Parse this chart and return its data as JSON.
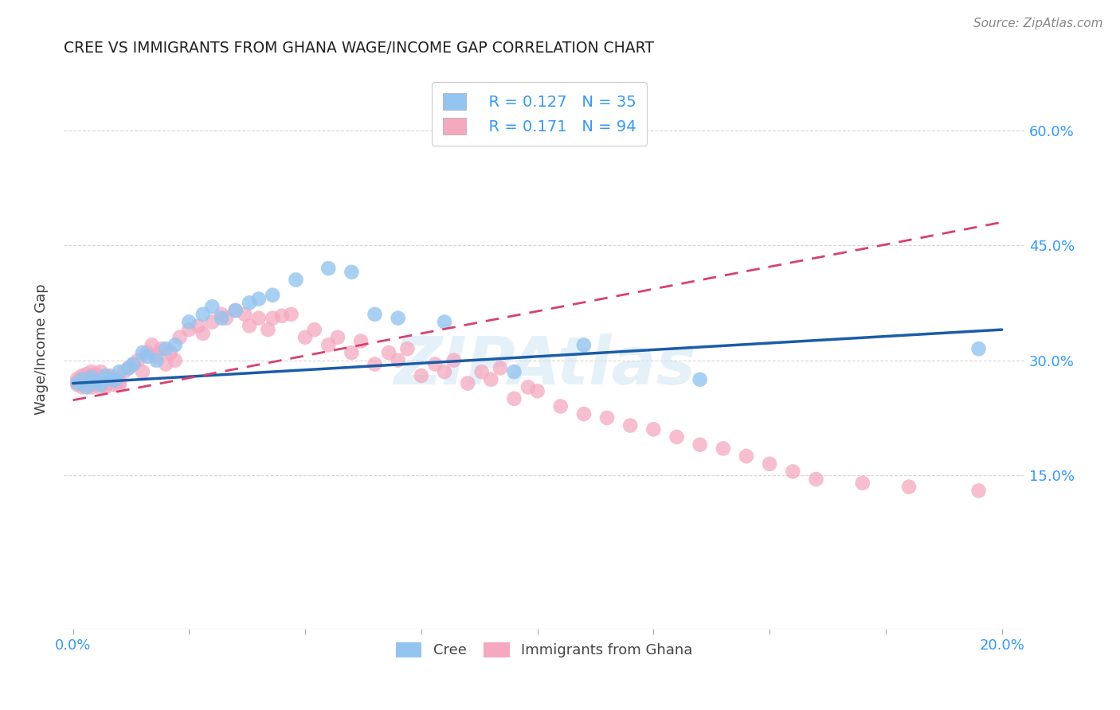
{
  "title": "CREE VS IMMIGRANTS FROM GHANA WAGE/INCOME GAP CORRELATION CHART",
  "source": "Source: ZipAtlas.com",
  "ylabel": "Wage/Income Gap",
  "yticks": [
    "60.0%",
    "45.0%",
    "30.0%",
    "15.0%"
  ],
  "ytick_vals": [
    0.6,
    0.45,
    0.3,
    0.15
  ],
  "xtick_vals": [
    0.0,
    0.025,
    0.05,
    0.075,
    0.1,
    0.125,
    0.15,
    0.175,
    0.2
  ],
  "xlim": [
    -0.002,
    0.205
  ],
  "ylim": [
    -0.05,
    0.68
  ],
  "watermark": "ZIPAtlas",
  "legend_blue_r": "R = 0.127",
  "legend_blue_n": "N = 35",
  "legend_pink_r": "R = 0.171",
  "legend_pink_n": "N = 94",
  "blue_color": "#92C5F0",
  "pink_color": "#F5A8C0",
  "trendline_blue": "#1A5CA8",
  "trendline_pink": "#D94070",
  "label_color": "#3399FF",
  "text_color": "#444444",
  "cree_label": "Cree",
  "ghana_label": "Immigrants from Ghana",
  "blue_scatter_x": [
    0.001,
    0.002,
    0.003,
    0.004,
    0.005,
    0.006,
    0.007,
    0.008,
    0.009,
    0.01,
    0.012,
    0.013,
    0.015,
    0.016,
    0.018,
    0.02,
    0.022,
    0.025,
    0.028,
    0.03,
    0.032,
    0.035,
    0.038,
    0.04,
    0.043,
    0.048,
    0.055,
    0.06,
    0.065,
    0.07,
    0.08,
    0.095,
    0.11,
    0.135,
    0.195
  ],
  "blue_scatter_y": [
    0.27,
    0.275,
    0.265,
    0.278,
    0.272,
    0.268,
    0.28,
    0.276,
    0.274,
    0.285,
    0.29,
    0.295,
    0.31,
    0.305,
    0.3,
    0.315,
    0.32,
    0.35,
    0.36,
    0.37,
    0.355,
    0.365,
    0.375,
    0.38,
    0.385,
    0.405,
    0.42,
    0.415,
    0.36,
    0.355,
    0.35,
    0.285,
    0.32,
    0.275,
    0.315
  ],
  "pink_scatter_x": [
    0.001,
    0.001,
    0.001,
    0.002,
    0.002,
    0.002,
    0.002,
    0.003,
    0.003,
    0.003,
    0.003,
    0.004,
    0.004,
    0.004,
    0.004,
    0.005,
    0.005,
    0.005,
    0.006,
    0.006,
    0.006,
    0.007,
    0.007,
    0.007,
    0.008,
    0.008,
    0.008,
    0.009,
    0.009,
    0.01,
    0.01,
    0.011,
    0.012,
    0.013,
    0.014,
    0.015,
    0.016,
    0.017,
    0.018,
    0.019,
    0.02,
    0.021,
    0.022,
    0.023,
    0.025,
    0.027,
    0.028,
    0.03,
    0.032,
    0.033,
    0.035,
    0.037,
    0.038,
    0.04,
    0.042,
    0.043,
    0.045,
    0.047,
    0.05,
    0.052,
    0.055,
    0.057,
    0.06,
    0.062,
    0.065,
    0.068,
    0.07,
    0.072,
    0.075,
    0.078,
    0.08,
    0.082,
    0.085,
    0.088,
    0.09,
    0.092,
    0.095,
    0.098,
    0.1,
    0.105,
    0.11,
    0.115,
    0.12,
    0.125,
    0.13,
    0.135,
    0.14,
    0.145,
    0.15,
    0.155,
    0.16,
    0.17,
    0.18,
    0.195
  ],
  "pink_scatter_y": [
    0.268,
    0.272,
    0.276,
    0.265,
    0.27,
    0.275,
    0.28,
    0.268,
    0.275,
    0.282,
    0.278,
    0.265,
    0.272,
    0.278,
    0.285,
    0.268,
    0.275,
    0.282,
    0.265,
    0.272,
    0.285,
    0.268,
    0.275,
    0.265,
    0.28,
    0.272,
    0.278,
    0.268,
    0.275,
    0.268,
    0.272,
    0.285,
    0.29,
    0.295,
    0.3,
    0.285,
    0.31,
    0.32,
    0.305,
    0.315,
    0.295,
    0.31,
    0.3,
    0.33,
    0.34,
    0.345,
    0.335,
    0.35,
    0.36,
    0.355,
    0.365,
    0.36,
    0.345,
    0.355,
    0.34,
    0.355,
    0.358,
    0.36,
    0.33,
    0.34,
    0.32,
    0.33,
    0.31,
    0.325,
    0.295,
    0.31,
    0.3,
    0.315,
    0.28,
    0.295,
    0.285,
    0.3,
    0.27,
    0.285,
    0.275,
    0.29,
    0.25,
    0.265,
    0.26,
    0.24,
    0.23,
    0.225,
    0.215,
    0.21,
    0.2,
    0.19,
    0.185,
    0.175,
    0.165,
    0.155,
    0.145,
    0.14,
    0.135,
    0.13
  ]
}
